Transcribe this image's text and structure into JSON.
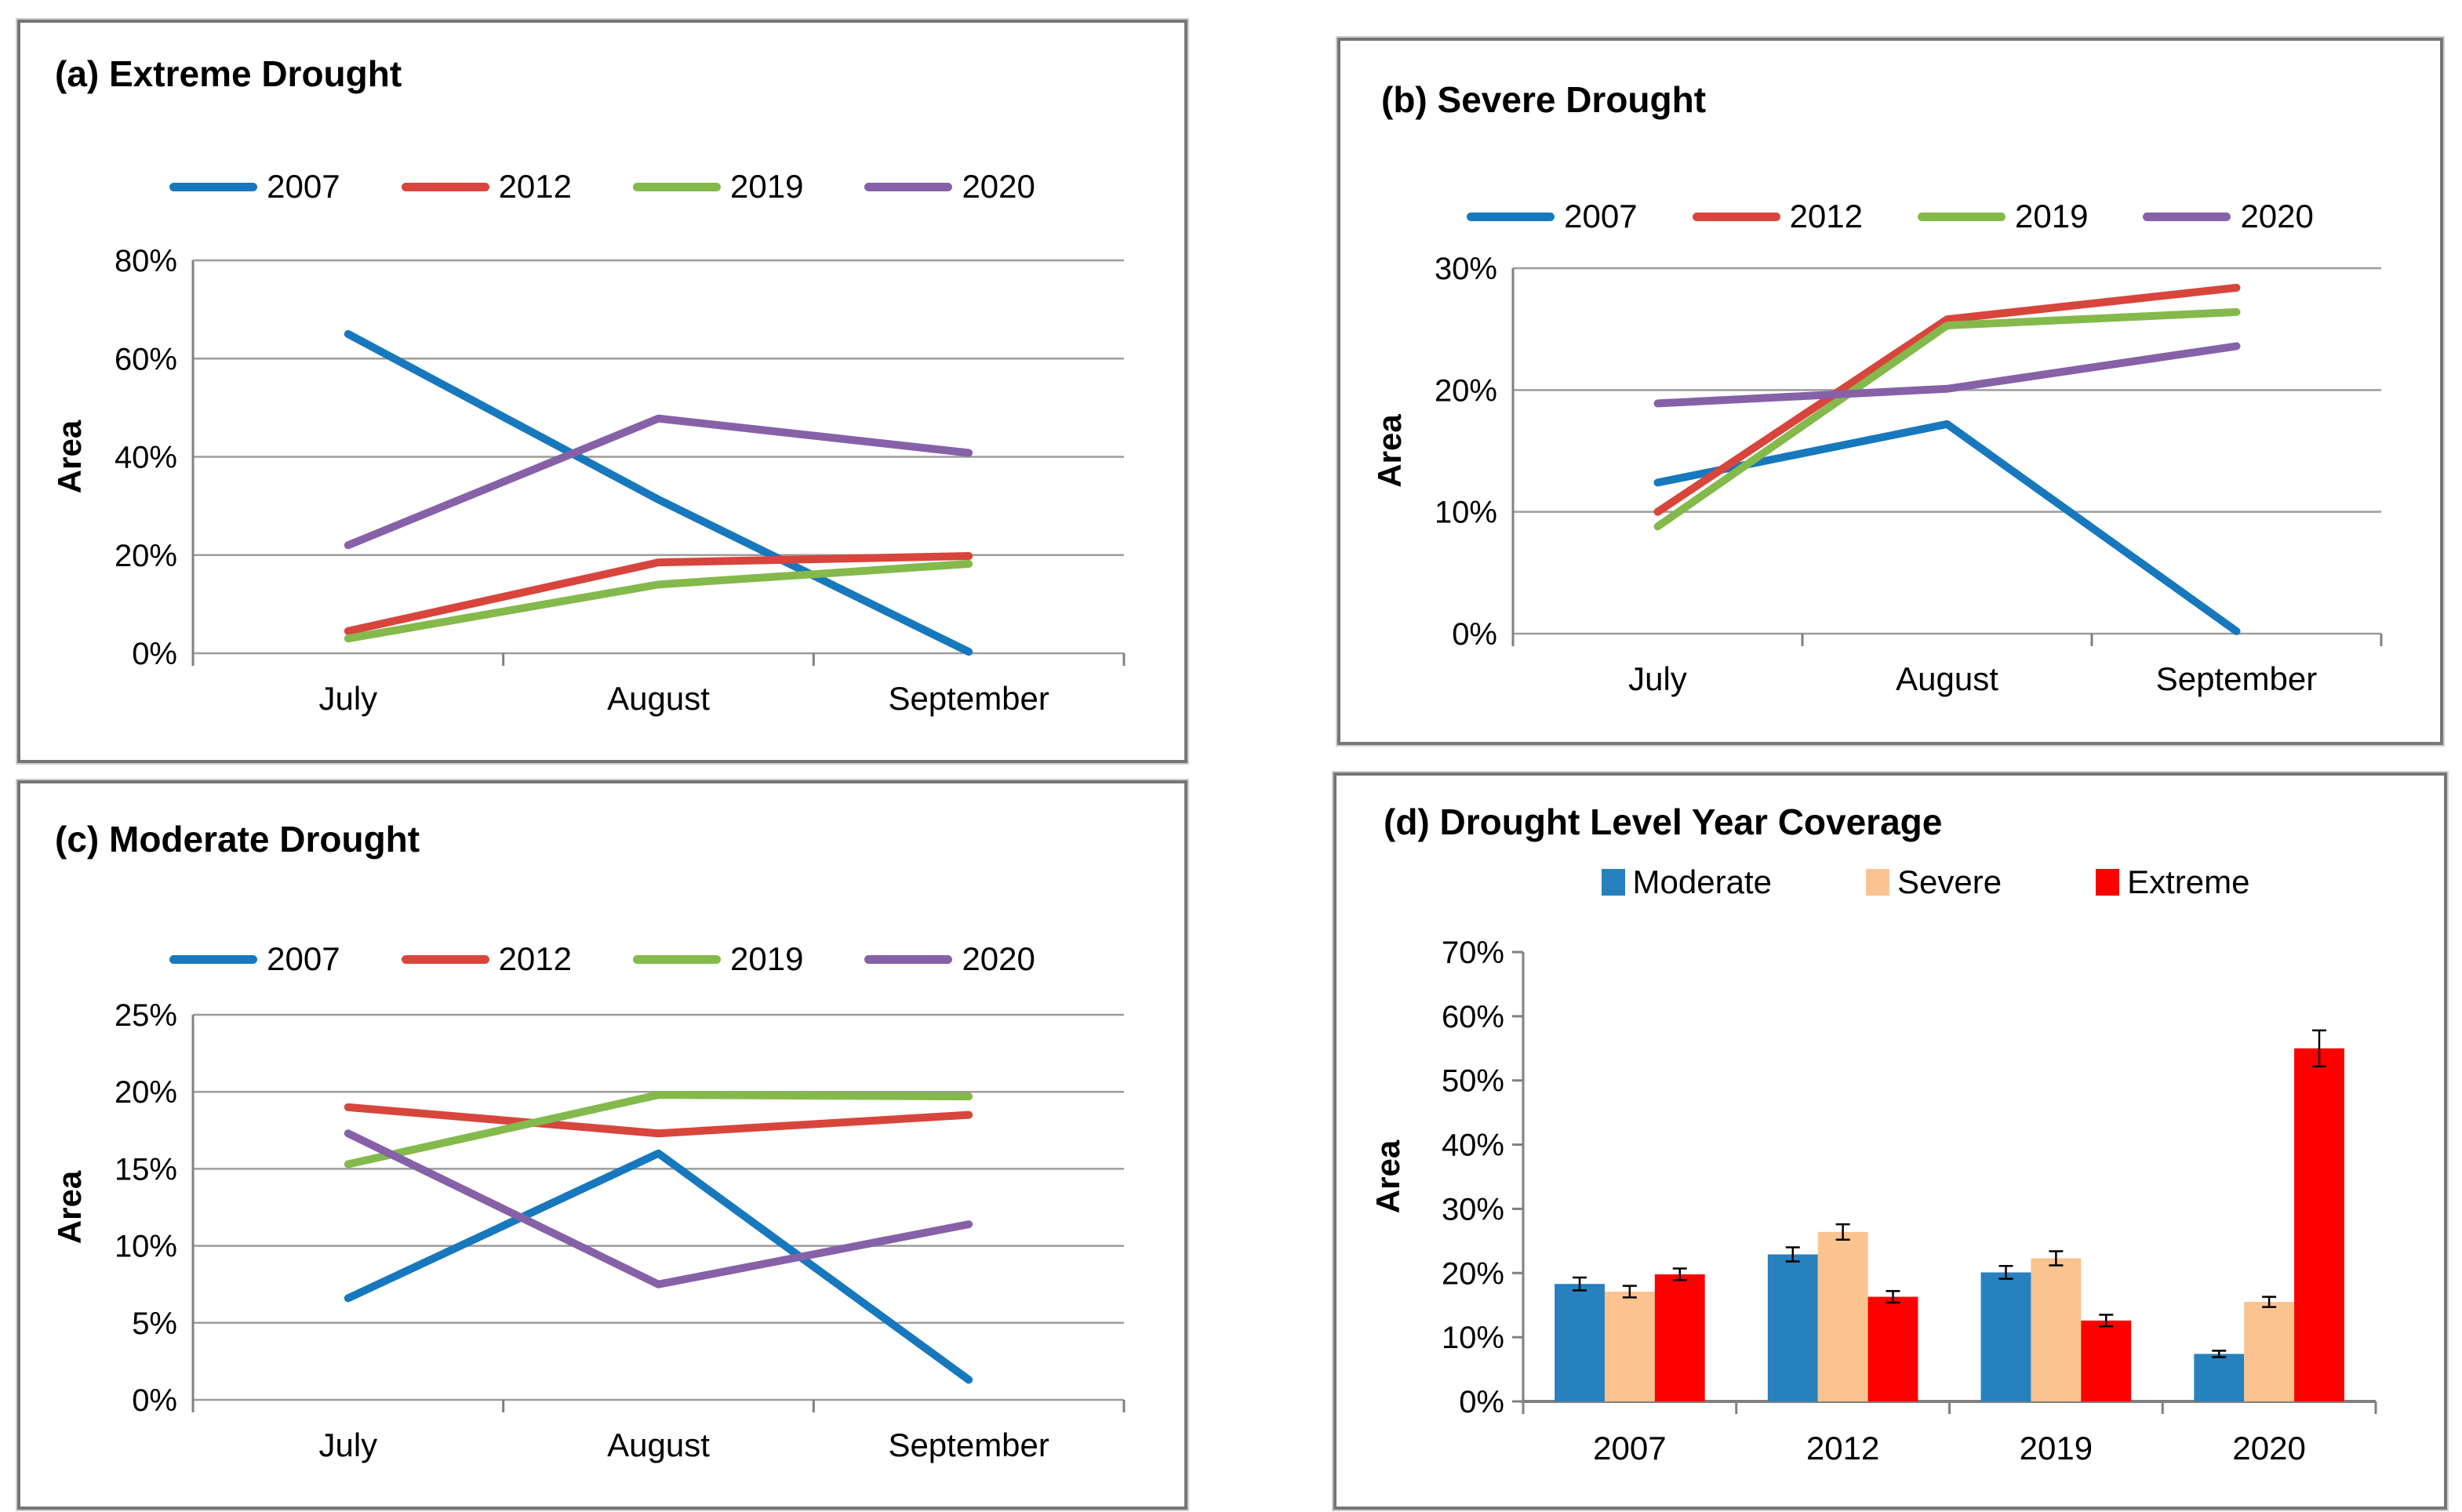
{
  "chart_data": [
    {
      "type": "line",
      "panel_label": "(a)",
      "title": "(a) Extreme Drought",
      "ylabel": "Area",
      "categories": [
        "July",
        "August",
        "September"
      ],
      "yticks": [
        "0%",
        "20%",
        "40%",
        "60%",
        "80%"
      ],
      "ylim": [
        0,
        80
      ],
      "grid": true,
      "legend_position": "top",
      "grid_color": "#9c9c9c",
      "axis_color": "#808080",
      "series": [
        {
          "name": "2007",
          "color": "#1778BE",
          "values": [
            65,
            31.3,
            0.3
          ]
        },
        {
          "name": "2012",
          "color": "#D8453C",
          "values": [
            4.5,
            18.5,
            19.8
          ]
        },
        {
          "name": "2019",
          "color": "#84B94B",
          "values": [
            3,
            14,
            18.2
          ]
        },
        {
          "name": "2020",
          "color": "#8661A8",
          "values": [
            22,
            47.8,
            40.8
          ]
        }
      ]
    },
    {
      "type": "line",
      "panel_label": "(b)",
      "title": "(b) Severe Drought",
      "ylabel": "Area",
      "categories": [
        "July",
        "August",
        "September"
      ],
      "yticks": [
        "0%",
        "10%",
        "20%",
        "30%"
      ],
      "ylim": [
        0,
        30
      ],
      "grid": true,
      "legend_position": "top",
      "grid_color": "#9c9c9c",
      "axis_color": "#808080",
      "series": [
        {
          "name": "2007",
          "color": "#1778BE",
          "values": [
            12.4,
            17.2,
            0.2
          ]
        },
        {
          "name": "2012",
          "color": "#D8453C",
          "values": [
            10,
            25.8,
            28.4
          ]
        },
        {
          "name": "2019",
          "color": "#84B94B",
          "values": [
            8.8,
            25.3,
            26.4
          ]
        },
        {
          "name": "2020",
          "color": "#8661A8",
          "values": [
            18.9,
            20.1,
            23.6
          ]
        }
      ]
    },
    {
      "type": "line",
      "panel_label": "(c)",
      "title": "(c) Moderate Drought",
      "ylabel": "Area",
      "categories": [
        "July",
        "August",
        "September"
      ],
      "yticks": [
        "0%",
        "5%",
        "10%",
        "15%",
        "20%",
        "25%"
      ],
      "ylim": [
        0,
        25
      ],
      "grid": true,
      "legend_position": "top",
      "grid_color": "#9c9c9c",
      "axis_color": "#808080",
      "series": [
        {
          "name": "2007",
          "color": "#1778BE",
          "values": [
            6.6,
            16,
            1.3
          ]
        },
        {
          "name": "2012",
          "color": "#D8453C",
          "values": [
            19,
            17.3,
            18.5
          ]
        },
        {
          "name": "2019",
          "color": "#84B94B",
          "values": [
            15.3,
            19.8,
            19.7
          ]
        },
        {
          "name": "2020",
          "color": "#8661A8",
          "values": [
            17.3,
            7.5,
            11.4
          ]
        }
      ]
    },
    {
      "type": "bar",
      "panel_label": "(d)",
      "title": "(d) Drought Level Year Coverage",
      "ylabel": "Area",
      "categories": [
        "2007",
        "2012",
        "2019",
        "2020"
      ],
      "yticks": [
        "0%",
        "10%",
        "20%",
        "30%",
        "40%",
        "50%",
        "60%",
        "70%"
      ],
      "ylim": [
        0,
        70
      ],
      "grid": false,
      "legend_position": "top",
      "grid_color": "#9c9c9c",
      "axis_color": "#808080",
      "error_bar_color": "#000000",
      "series": [
        {
          "name": "Moderate",
          "color": "#2681BE",
          "values": [
            18.3,
            22.9,
            20.1,
            7.4
          ],
          "errors": [
            1.0,
            1.1,
            1.0,
            0.5
          ]
        },
        {
          "name": "Severe",
          "color": "#FBC38F",
          "values": [
            17.1,
            26.4,
            22.3,
            15.5
          ],
          "errors": [
            0.9,
            1.2,
            1.1,
            0.8
          ]
        },
        {
          "name": "Extreme",
          "color": "#FF0000",
          "values": [
            19.8,
            16.3,
            12.6,
            55.0
          ],
          "errors": [
            0.9,
            0.9,
            0.9,
            2.8
          ]
        }
      ]
    }
  ]
}
